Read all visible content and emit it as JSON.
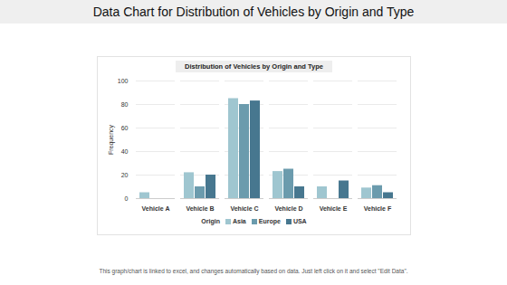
{
  "chart_data": {
    "type": "bar",
    "title": "Distribution of Vehicles by Origin and Type",
    "page_title": "Data Chart for Distribution of Vehicles by Origin and Type",
    "caption": "This graph/chart is linked to excel, and changes automatically based on data. Just left click on it and select \"Edit Data\".",
    "y_label": "Frequency",
    "legend_title": "Origin",
    "categories": [
      "Vehicle A",
      "Vehicle B",
      "Vehicle C",
      "Vehicle D",
      "Vehicle E",
      "Vehicle F"
    ],
    "series": [
      {
        "name": "Asia",
        "color": "#9fc6d0",
        "values": [
          5,
          22,
          85,
          23,
          10,
          9
        ]
      },
      {
        "name": "Europe",
        "color": "#6b9bad",
        "values": [
          0,
          10,
          80,
          25,
          0,
          11
        ]
      },
      {
        "name": "USA",
        "color": "#47778f",
        "values": [
          0,
          20,
          83,
          10,
          15,
          5
        ]
      }
    ],
    "ylim": [
      0,
      100
    ],
    "yticks": [
      0,
      20,
      40,
      60,
      80,
      100
    ],
    "grid": true,
    "legend": "bottom"
  }
}
